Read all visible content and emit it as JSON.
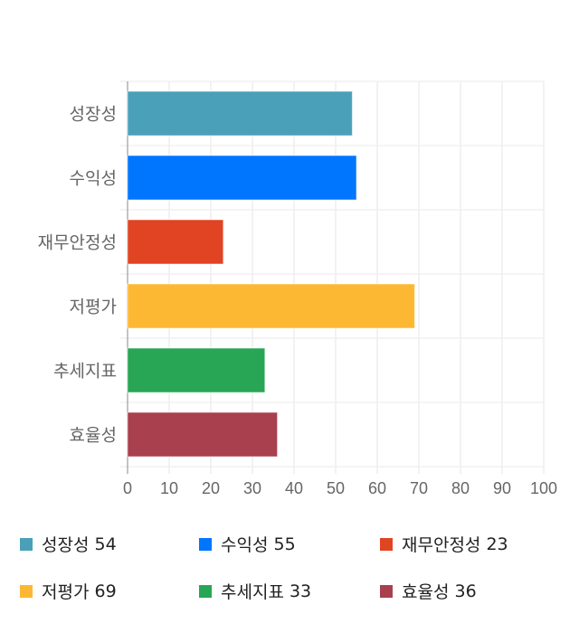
{
  "chart_data": {
    "type": "bar",
    "orientation": "horizontal",
    "categories": [
      "성장성",
      "수익성",
      "재무안정성",
      "저평가",
      "추세지표",
      "효율성"
    ],
    "values": [
      54,
      55,
      23,
      69,
      33,
      36
    ],
    "colors": [
      "#4aa0b9",
      "#0076ff",
      "#e04423",
      "#fdb833",
      "#28a655",
      "#a8404e"
    ],
    "xlim": [
      0,
      100
    ],
    "xticks": [
      0,
      10,
      20,
      30,
      40,
      50,
      60,
      70,
      80,
      90,
      100
    ],
    "grid": true,
    "legend_position": "bottom"
  },
  "legend": [
    {
      "label": "성장성",
      "value": "54"
    },
    {
      "label": "수익성",
      "value": "55"
    },
    {
      "label": "재무안정성",
      "value": "23"
    },
    {
      "label": "저평가",
      "value": "69"
    },
    {
      "label": "추세지표",
      "value": "33"
    },
    {
      "label": "효율성",
      "value": "36"
    }
  ]
}
